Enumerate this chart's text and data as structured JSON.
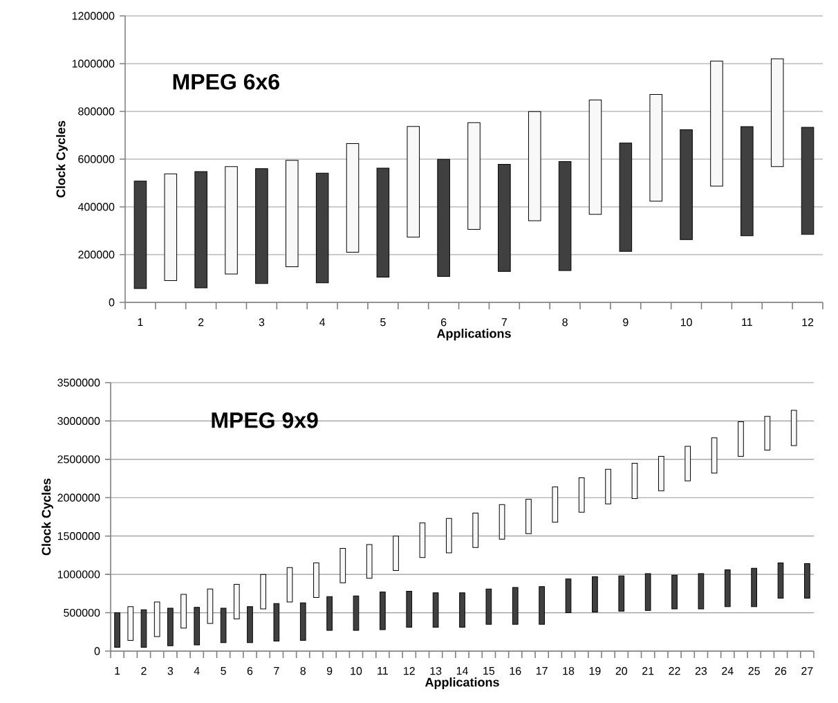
{
  "chart_data": [
    {
      "type": "bar",
      "title": "MPEG 6x6",
      "xlabel": "Applications",
      "ylabel": "Clock Cycles",
      "categories": [
        "1",
        null,
        "2",
        null,
        "3",
        null,
        "4",
        null,
        "5",
        null,
        "6",
        null,
        "7",
        null,
        "8",
        null,
        "9",
        null,
        "10",
        null,
        "11",
        null,
        "12"
      ],
      "series": [
        {
          "color": "#404040",
          "values": [
            450000,
            null,
            487000,
            null,
            481000,
            null,
            459000,
            null,
            456000,
            null,
            490000,
            null,
            448000,
            null,
            457000,
            null,
            453000,
            null,
            460000,
            null,
            457000,
            null,
            448000
          ],
          "base": [
            58000,
            null,
            61000,
            null,
            79000,
            null,
            82000,
            null,
            106000,
            null,
            109000,
            null,
            130000,
            null,
            133000,
            null,
            214000,
            null,
            263000,
            null,
            279000,
            null,
            285000
          ]
        },
        {
          "color": "#f8f8f8",
          "values": [
            null,
            447000,
            null,
            450000,
            null,
            446000,
            null,
            455000,
            null,
            464000,
            null,
            447000,
            null,
            457000,
            null,
            479000,
            null,
            447000,
            null,
            524000,
            null,
            451000,
            null
          ],
          "base": [
            null,
            91000,
            null,
            119000,
            null,
            149000,
            null,
            210000,
            null,
            273000,
            null,
            306000,
            null,
            342000,
            null,
            369000,
            null,
            424000,
            null,
            487000,
            null,
            569000,
            null
          ]
        }
      ],
      "ylim": [
        0,
        1200000
      ],
      "yticks": [
        0,
        200000,
        400000,
        600000,
        800000,
        1000000,
        1200000
      ],
      "grid": "y"
    },
    {
      "type": "bar",
      "title": "MPEG 9x9",
      "xlabel": "Applications",
      "ylabel": "Clock Cycles",
      "categories": [
        "1",
        null,
        "2",
        null,
        "3",
        null,
        "4",
        null,
        "5",
        null,
        "6",
        null,
        "7",
        null,
        "8",
        null,
        "9",
        null,
        "10",
        null,
        "11",
        null,
        "12",
        null,
        "13",
        null,
        "14",
        null,
        "15",
        null,
        "16",
        null,
        "17",
        null,
        "18",
        null,
        "19",
        null,
        "20",
        null,
        "21",
        null,
        "22",
        null,
        "23",
        null,
        "24",
        null,
        "25",
        null,
        "26",
        null,
        "27"
      ],
      "series": [
        {
          "color": "#404040",
          "values": [
            450000,
            null,
            490000,
            null,
            490000,
            null,
            490000,
            null,
            450000,
            null,
            470000,
            null,
            490000,
            null,
            490000,
            null,
            440000,
            null,
            450000,
            null,
            490000,
            null,
            470000,
            null,
            450000,
            null,
            450000,
            null,
            460000,
            null,
            480000,
            null,
            490000,
            null,
            440000,
            null,
            460000,
            null,
            460000,
            null,
            480000,
            null,
            440000,
            null,
            460000,
            null,
            480000,
            null,
            500000,
            null,
            460000,
            null,
            450000
          ],
          "base": [
            50000,
            null,
            50000,
            null,
            70000,
            null,
            80000,
            null,
            110000,
            null,
            110000,
            null,
            130000,
            null,
            140000,
            null,
            270000,
            null,
            270000,
            null,
            280000,
            null,
            310000,
            null,
            310000,
            null,
            310000,
            null,
            350000,
            null,
            350000,
            null,
            350000,
            null,
            500000,
            null,
            510000,
            null,
            520000,
            null,
            530000,
            null,
            550000,
            null,
            550000,
            null,
            580000,
            null,
            580000,
            null,
            690000,
            null,
            690000
          ]
        },
        {
          "color": "#f8f8f8",
          "values": [
            null,
            440000,
            null,
            450000,
            null,
            440000,
            null,
            450000,
            null,
            450000,
            null,
            450000,
            null,
            450000,
            null,
            450000,
            null,
            450000,
            null,
            440000,
            null,
            450000,
            null,
            450000,
            null,
            450000,
            null,
            450000,
            null,
            450000,
            null,
            450000,
            null,
            460000,
            null,
            450000,
            null,
            450000,
            null,
            460000,
            null,
            450000,
            null,
            450000,
            null,
            460000,
            null,
            450000,
            null,
            440000,
            null,
            460000,
            null
          ],
          "base": [
            null,
            140000,
            null,
            190000,
            null,
            300000,
            null,
            360000,
            null,
            420000,
            null,
            550000,
            null,
            640000,
            null,
            700000,
            null,
            890000,
            null,
            950000,
            null,
            1050000,
            null,
            1220000,
            null,
            1280000,
            null,
            1350000,
            null,
            1460000,
            null,
            1530000,
            null,
            1680000,
            null,
            1810000,
            null,
            1920000,
            null,
            1990000,
            null,
            2090000,
            null,
            2220000,
            null,
            2320000,
            null,
            2540000,
            null,
            2620000,
            null,
            2680000,
            null
          ]
        }
      ],
      "ylim": [
        0,
        3500000
      ],
      "yticks": [
        0,
        500000,
        1000000,
        1500000,
        2000000,
        2500000,
        3000000,
        3500000
      ],
      "grid": "y"
    }
  ]
}
